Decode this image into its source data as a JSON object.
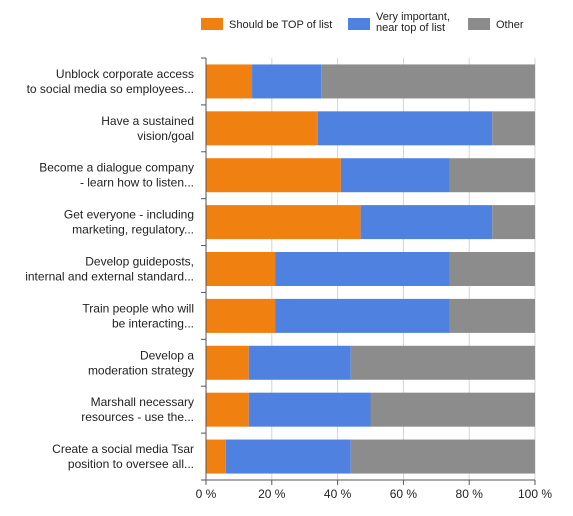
{
  "chart_data": {
    "type": "bar",
    "orientation": "horizontal",
    "stacked": "percent",
    "categories": [
      [
        "Unblock corporate access",
        "to social media so employees..."
      ],
      [
        "Have a sustained",
        "vision/goal"
      ],
      [
        "Become a dialogue company",
        "- learn how to listen..."
      ],
      [
        "Get everyone - including",
        "marketing, regulatory..."
      ],
      [
        "Develop guideposts,",
        "internal and external standard..."
      ],
      [
        "Train people who will",
        "be interacting..."
      ],
      [
        "Develop a",
        "moderation strategy"
      ],
      [
        "Marshall necessary",
        "resources - use the..."
      ],
      [
        "Create a social media Tsar",
        "position to oversee all..."
      ]
    ],
    "series": [
      {
        "name": [
          "Should be TOP of list"
        ],
        "color": "#f08010",
        "values": [
          14,
          34,
          41,
          47,
          21,
          21,
          13,
          13,
          6
        ]
      },
      {
        "name": [
          "Very important,",
          "near top of list"
        ],
        "color": "#4f81e0",
        "values": [
          21,
          53,
          33,
          40,
          53,
          53,
          31,
          37,
          38
        ]
      },
      {
        "name": [
          "Other"
        ],
        "color": "#8c8c8c",
        "values": [
          65,
          13,
          26,
          13,
          26,
          26,
          56,
          50,
          56
        ]
      }
    ],
    "x_ticks": [
      "0 %",
      "20 %",
      "40 %",
      "60 %",
      "80 %",
      "100 %"
    ],
    "xlim": [
      0,
      100
    ],
    "grid": true,
    "legend_position": "top"
  }
}
